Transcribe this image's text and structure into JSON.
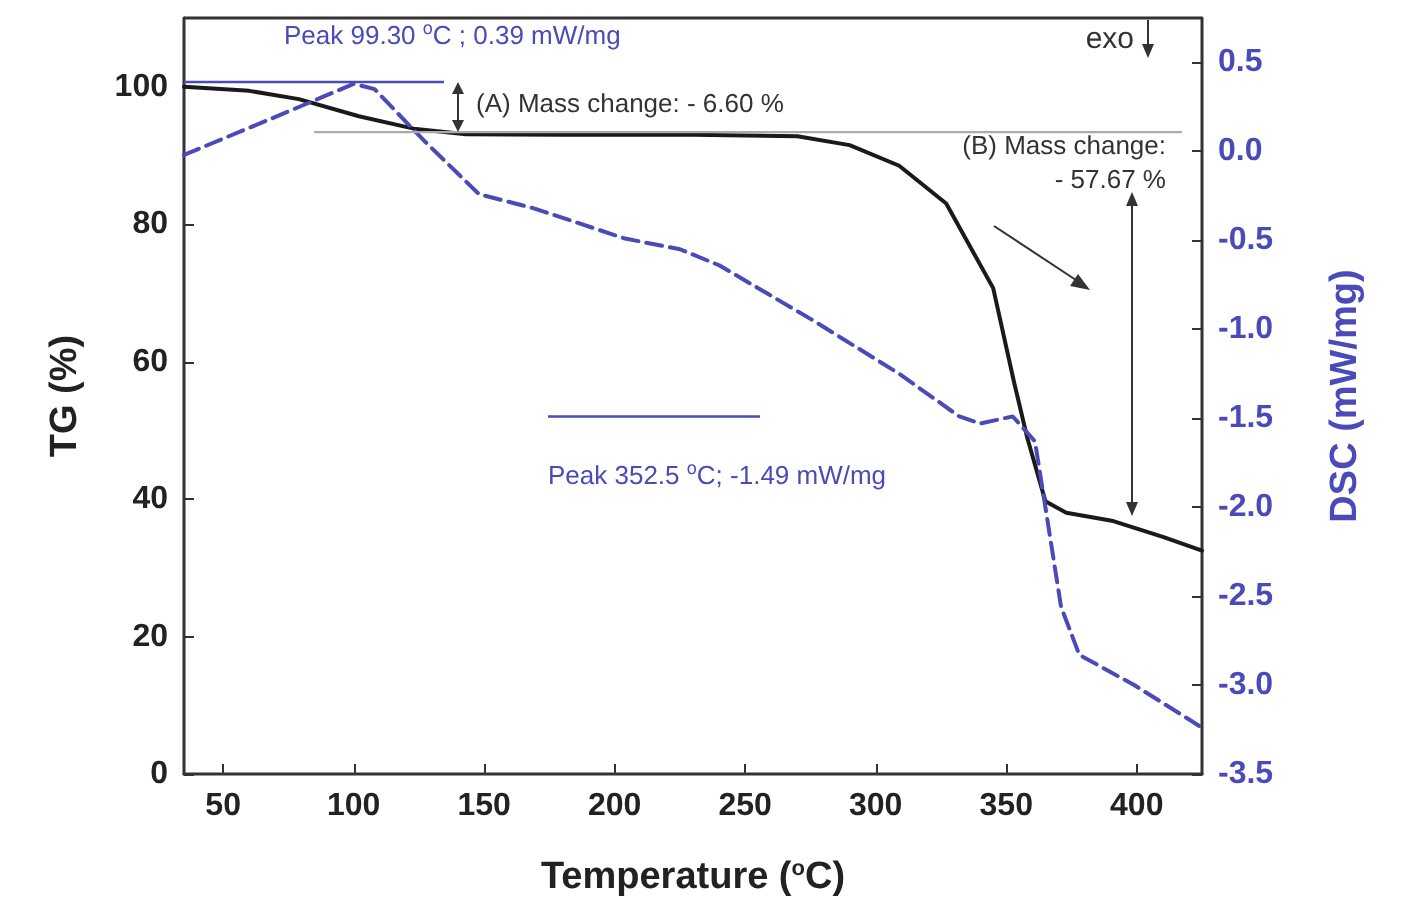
{
  "chart_data": {
    "type": "line",
    "xlabel": "Temperature ($^{o}$C)",
    "ylabel": "TG (%)",
    "y2label": "DSC (mW/mg)",
    "xlim": [
      35,
      425
    ],
    "xticks": [
      50,
      100,
      150,
      200,
      250,
      300,
      350,
      400
    ],
    "ylim": [
      0,
      110
    ],
    "yticks": [
      0,
      20,
      40,
      60,
      80,
      100
    ],
    "y2lim": [
      -3.5,
      0.75
    ],
    "y2ticks": [
      -3.5,
      {
        "value": -3,
        "label": "-3.0"
      },
      -2.5,
      {
        "value": -2,
        "label": "-2.0"
      },
      -1.5,
      {
        "value": -1,
        "label": "-1.0"
      },
      -0.5,
      {
        "value": 0,
        "label": "0.0"
      },
      0.5
    ],
    "grid": false,
    "marker": "none",
    "ref_lines": [
      {
        "axis": "y",
        "value": 93.4,
        "color": "#aaaaaa"
      },
      {
        "axis": "y2",
        "value": 0.39,
        "color": "#4a4ab8"
      },
      {
        "axis": "y2",
        "value": -1.49,
        "color": "#4a4ab8"
      }
    ],
    "series": [
      {
        "color": "#1a1a1a",
        "line_style": "solid",
        "x": [
          35,
          60,
          79,
          102,
          123,
          143,
          180,
          230,
          270,
          290,
          309,
          327,
          345,
          353,
          358,
          365,
          373,
          391,
          410,
          425
        ],
        "values": [
          100,
          99.4,
          98.2,
          95.7,
          93.9,
          93.1,
          93,
          93,
          92.8,
          91.5,
          88.5,
          83,
          70.7,
          57,
          49,
          39.7,
          38,
          36.8,
          34.5,
          32.5
        ]
      },
      {
        "color": "#4a4ab8",
        "line_style": "dashed",
        "axis": "y2",
        "x": [
          35,
          71,
          100,
          108,
          127,
          148,
          169,
          204,
          225,
          240,
          276,
          309,
          332,
          340,
          352.5,
          361,
          365,
          371,
          378,
          399,
          424
        ],
        "values": [
          -0.02,
          0.2,
          0.38,
          0.35,
          0.06,
          -0.24,
          -0.32,
          -0.49,
          -0.55,
          -0.64,
          -0.95,
          -1.25,
          -1.49,
          -1.53,
          -1.49,
          -1.63,
          -2.0,
          -2.56,
          -2.83,
          -3.0,
          -3.23
        ]
      }
    ],
    "annotations": [
      "Peak  99.30 $^{o}$C ; 0.39 mW/mg",
      "(A) Mass change: - 6.60 %",
      "exo",
      "(B) Mass change:\n- 57.67 %",
      "Peak  352.5 $^{o}$C; -1.49 mW/mg"
    ]
  }
}
